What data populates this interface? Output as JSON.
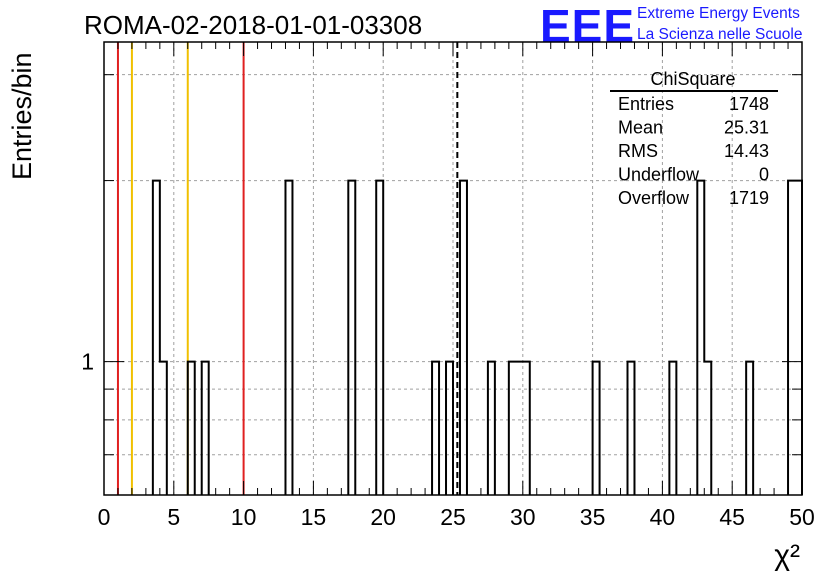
{
  "title": "ROMA-02-2018-01-01-03308",
  "logo": {
    "text": "EEE",
    "line1": "Extreme Energy Events",
    "line2": "La Scienza nelle Scuole",
    "color": "#1a1aff"
  },
  "stats": {
    "name": "ChiSquare",
    "rows": [
      {
        "label": "Entries",
        "value": "1748"
      },
      {
        "label": "Mean",
        "value": "25.31"
      },
      {
        "label": "RMS",
        "value": "14.43"
      },
      {
        "label": "Underflow",
        "value": "0"
      },
      {
        "label": "Overflow",
        "value": "1719"
      }
    ]
  },
  "chart_data": {
    "type": "histogram",
    "title": "ROMA-02-2018-01-01-03308",
    "xlabel": "χ²",
    "ylabel": "Entries/bin",
    "xlim": [
      0,
      50
    ],
    "ylim": [
      0.6,
      3.4
    ],
    "y_log": true,
    "grid": true,
    "bin_width": 0.5,
    "xticks": [
      "0",
      "5",
      "10",
      "15",
      "20",
      "25",
      "30",
      "35",
      "40",
      "45",
      "50"
    ],
    "yticks": [
      "1"
    ],
    "bins": [
      {
        "x": 3.5,
        "count": 2
      },
      {
        "x": 4.0,
        "count": 1
      },
      {
        "x": 6.0,
        "count": 1
      },
      {
        "x": 7.0,
        "count": 1
      },
      {
        "x": 13.0,
        "count": 2
      },
      {
        "x": 17.5,
        "count": 2
      },
      {
        "x": 19.5,
        "count": 2
      },
      {
        "x": 23.5,
        "count": 1
      },
      {
        "x": 24.5,
        "count": 1
      },
      {
        "x": 25.5,
        "count": 2
      },
      {
        "x": 27.5,
        "count": 1
      },
      {
        "x": 29.0,
        "count": 1
      },
      {
        "x": 29.5,
        "count": 1
      },
      {
        "x": 30.0,
        "count": 1
      },
      {
        "x": 35.0,
        "count": 1
      },
      {
        "x": 37.5,
        "count": 1
      },
      {
        "x": 40.5,
        "count": 1
      },
      {
        "x": 42.5,
        "count": 2
      },
      {
        "x": 43.0,
        "count": 1
      },
      {
        "x": 46.0,
        "count": 1
      },
      {
        "x": 49.0,
        "count": 2
      },
      {
        "x": 49.5,
        "count": 2
      }
    ],
    "vlines": [
      {
        "x": 1,
        "color": "#e02020",
        "style": "solid"
      },
      {
        "x": 2,
        "color": "#f0c000",
        "style": "solid"
      },
      {
        "x": 6,
        "color": "#f0c000",
        "style": "solid"
      },
      {
        "x": 10,
        "color": "#e02020",
        "style": "solid"
      },
      {
        "x": 25.31,
        "color": "#000000",
        "style": "dashed"
      }
    ]
  }
}
